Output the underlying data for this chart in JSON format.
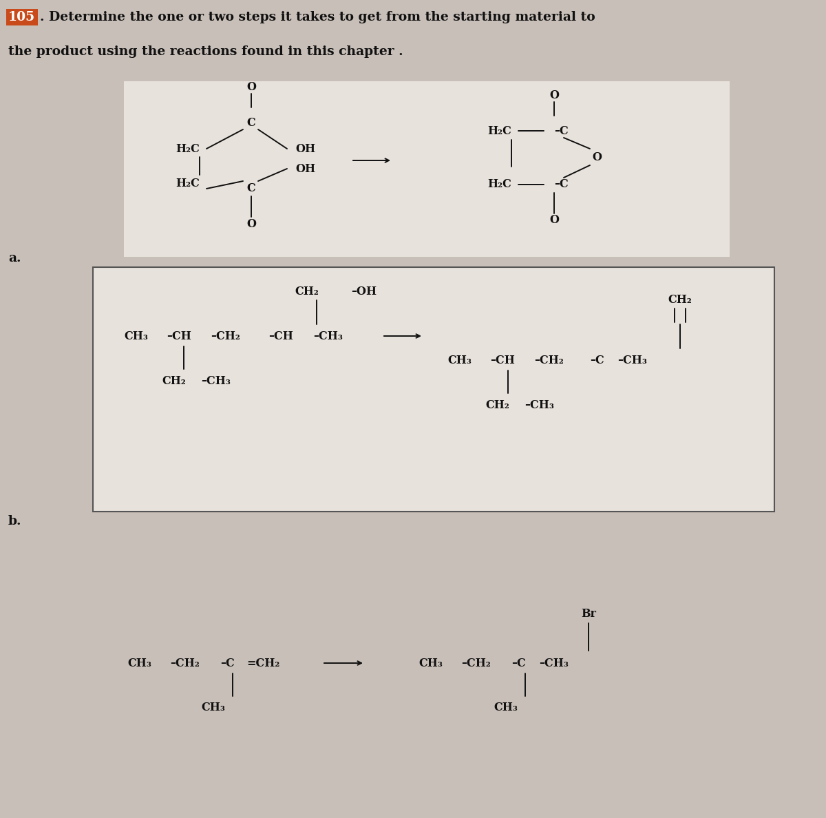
{
  "background_color": "#c8bfb8",
  "box_fill": "#d4ccc6",
  "inner_bg": "#e8e2dc",
  "text_color": "#111111",
  "title_number": "105",
  "title_highlight": "#c94a1a",
  "label_a": "a.",
  "label_b": "b.",
  "fig_width": 12.0,
  "fig_height": 11.88
}
